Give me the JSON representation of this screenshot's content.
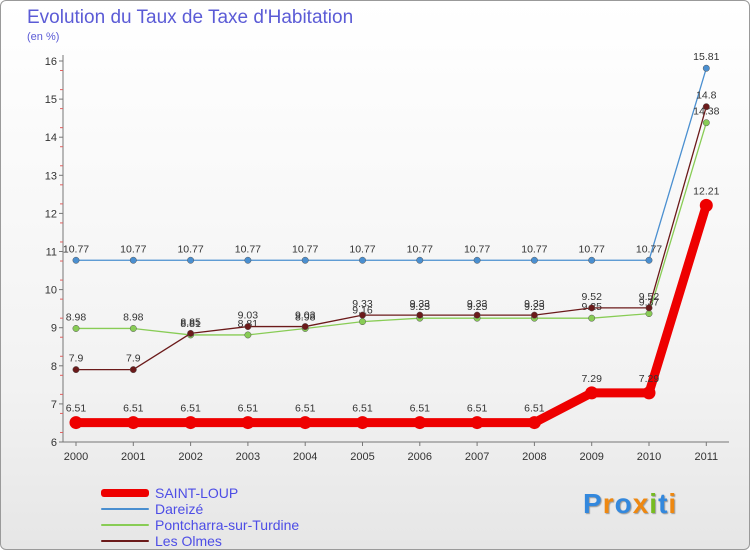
{
  "chart_data": {
    "type": "line",
    "title": "Evolution du Taux de Taxe d'Habitation",
    "unit_label": "(en %)",
    "x": [
      "2000",
      "2001",
      "2002",
      "2003",
      "2004",
      "2005",
      "2006",
      "2007",
      "2008",
      "2009",
      "2010",
      "2011"
    ],
    "y_ticks": [
      6,
      7,
      8,
      9,
      10,
      11,
      12,
      13,
      14,
      15,
      16
    ],
    "ylim": [
      6,
      16
    ],
    "series": [
      {
        "name": "Dareizé",
        "color": "#4a8fd0",
        "values": [
          10.77,
          10.77,
          10.77,
          10.77,
          10.77,
          10.77,
          10.77,
          10.77,
          10.77,
          10.77,
          10.77,
          15.81
        ],
        "labels": [
          "10.77",
          "10.77",
          "10.77",
          "10.77",
          "10.77",
          "10.77",
          "10.77",
          "10.77",
          "10.77",
          "10.77",
          "10.77",
          "15.81"
        ]
      },
      {
        "name": "Pontcharra-sur-Turdine",
        "color": "#88cc55",
        "values": [
          8.98,
          8.98,
          8.81,
          8.81,
          8.98,
          9.16,
          9.25,
          9.25,
          9.25,
          9.25,
          9.37,
          14.38
        ],
        "labels": [
          "8.98",
          "8.98",
          "8.81",
          "8.81",
          "8.98",
          "9.16",
          "9.25",
          "9.25",
          "9.25",
          "9.25",
          "9.37",
          "14.38"
        ]
      },
      {
        "name": "Les Olmes",
        "color": "#6b1a1a",
        "values": [
          7.9,
          7.9,
          8.85,
          9.03,
          9.03,
          9.33,
          9.33,
          9.33,
          9.33,
          9.52,
          9.52,
          14.8
        ],
        "labels": [
          "7.9",
          "7.9",
          "8.85",
          "9.03",
          "9.03",
          "9.33",
          "9.33",
          "9.33",
          "9.33",
          "9.52",
          "9.52",
          "14.8"
        ]
      },
      {
        "name": "SAINT-LOUP",
        "color": "#ee0000",
        "values": [
          6.51,
          6.51,
          6.51,
          6.51,
          6.51,
          6.51,
          6.51,
          6.51,
          6.51,
          7.29,
          7.29,
          12.21
        ],
        "labels": [
          "6.51",
          "6.51",
          "6.51",
          "6.51",
          "6.51",
          "6.51",
          "6.51",
          "6.51",
          "6.51",
          "7.29",
          "7.29",
          "12.21"
        ]
      }
    ],
    "legend": [
      {
        "name": "SAINT-LOUP",
        "color": "#ee0000"
      },
      {
        "name": "Dareizé",
        "color": "#4a8fd0"
      },
      {
        "name": "Pontcharra-sur-Turdine",
        "color": "#88cc55"
      },
      {
        "name": "Les Olmes",
        "color": "#6b1a1a"
      }
    ]
  },
  "logo": {
    "text": "Proxiti",
    "colors": [
      "#3388dd",
      "#ee8811",
      "#3388dd",
      "#ee8811",
      "#77bb22",
      "#3388dd",
      "#ee8811"
    ]
  }
}
